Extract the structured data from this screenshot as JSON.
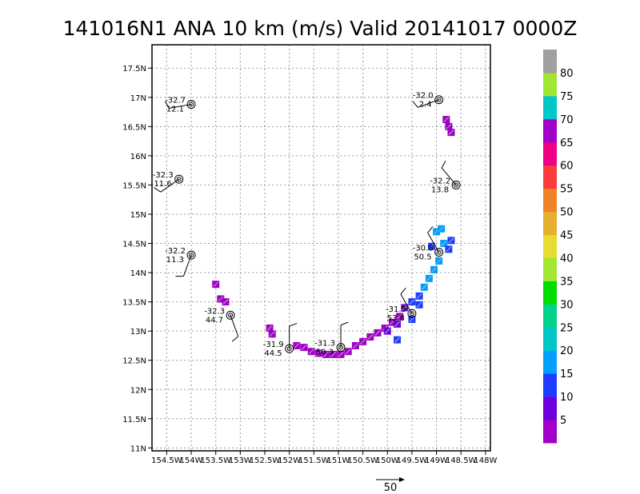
{
  "chart_data": {
    "type": "scatter",
    "title": "141016N1 ANA 10 km (m/s) Valid 20141017 0000Z",
    "xlabel": "",
    "ylabel": "",
    "xlim": [
      -154.8,
      -147.9
    ],
    "ylim": [
      10.95,
      17.9
    ],
    "x_ticks": [
      {
        "value": -154.5,
        "label": "154.5W"
      },
      {
        "value": -154.0,
        "label": "154W"
      },
      {
        "value": -153.5,
        "label": "153.5W"
      },
      {
        "value": -153.0,
        "label": "153W"
      },
      {
        "value": -152.5,
        "label": "152.5W"
      },
      {
        "value": -152.0,
        "label": "152W"
      },
      {
        "value": -151.5,
        "label": "151.5W"
      },
      {
        "value": -151.0,
        "label": "151W"
      },
      {
        "value": -150.5,
        "label": "150.5W"
      },
      {
        "value": -150.0,
        "label": "150W"
      },
      {
        "value": -149.5,
        "label": "149.5W"
      },
      {
        "value": -149.0,
        "label": "149W"
      },
      {
        "value": -148.5,
        "label": "148.5W"
      },
      {
        "value": -148.0,
        "label": "148W"
      }
    ],
    "y_ticks": [
      {
        "value": 11.0,
        "label": "11N"
      },
      {
        "value": 11.5,
        "label": "11.5N"
      },
      {
        "value": 12.0,
        "label": "12N"
      },
      {
        "value": 12.5,
        "label": "12.5N"
      },
      {
        "value": 13.0,
        "label": "13N"
      },
      {
        "value": 13.5,
        "label": "13.5N"
      },
      {
        "value": 14.0,
        "label": "14N"
      },
      {
        "value": 14.5,
        "label": "14.5N"
      },
      {
        "value": 15.0,
        "label": "15N"
      },
      {
        "value": 15.5,
        "label": "15.5N"
      },
      {
        "value": 16.0,
        "label": "16N"
      },
      {
        "value": 16.5,
        "label": "16.5N"
      },
      {
        "value": 17.0,
        "label": "17N"
      },
      {
        "value": 17.5,
        "label": "17.5N"
      }
    ],
    "grid": true,
    "legend": "right colorbar",
    "colorbar": {
      "ticks": [
        5,
        10,
        15,
        20,
        25,
        30,
        35,
        40,
        45,
        50,
        55,
        60,
        65,
        70,
        75,
        80
      ],
      "bands": [
        {
          "from": 0,
          "to": 5,
          "color": "#a000c8"
        },
        {
          "from": 5,
          "to": 10,
          "color": "#6e00dc"
        },
        {
          "from": 10,
          "to": 15,
          "color": "#1e3cff"
        },
        {
          "from": 15,
          "to": 20,
          "color": "#00a0ff"
        },
        {
          "from": 20,
          "to": 25,
          "color": "#00c8c8"
        },
        {
          "from": 25,
          "to": 30,
          "color": "#00d28c"
        },
        {
          "from": 30,
          "to": 35,
          "color": "#00dc00"
        },
        {
          "from": 35,
          "to": 40,
          "color": "#a0e632"
        },
        {
          "from": 40,
          "to": 45,
          "color": "#e6dc32"
        },
        {
          "from": 45,
          "to": 50,
          "color": "#e6af2d"
        },
        {
          "from": 50,
          "to": 55,
          "color": "#f08228"
        },
        {
          "from": 55,
          "to": 60,
          "color": "#fa3c3c"
        },
        {
          "from": 60,
          "to": 65,
          "color": "#f00082"
        },
        {
          "from": 65,
          "to": 70,
          "color": "#a000c8"
        },
        {
          "from": 70,
          "to": 75,
          "color": "#00c8c8"
        },
        {
          "from": 75,
          "to": 80,
          "color": "#a0e632"
        },
        {
          "from": 80,
          "to": 85,
          "color": "#a0a0a0"
        }
      ]
    },
    "stations": [
      {
        "lon": -154.0,
        "lat": 16.88,
        "temp": "-32.7",
        "speed": "12.1",
        "barb_dir": 260
      },
      {
        "lon": -148.95,
        "lat": 16.96,
        "temp": "-32.0",
        "speed": "2.4",
        "barb_dir": 250
      },
      {
        "lon": -154.25,
        "lat": 15.6,
        "temp": "-32.3",
        "speed": "11.6",
        "barb_dir": 235
      },
      {
        "lon": -148.6,
        "lat": 15.5,
        "temp": "-32.2",
        "speed": "13.8",
        "barb_dir": 320
      },
      {
        "lon": -154.0,
        "lat": 14.3,
        "temp": "-32.2",
        "speed": "11.3",
        "barb_dir": 200
      },
      {
        "lon": -148.95,
        "lat": 14.35,
        "temp": "-30.8",
        "speed": "50.5",
        "barb_dir": 330
      },
      {
        "lon": -153.2,
        "lat": 13.27,
        "temp": "-32.3",
        "speed": "44.7",
        "barb_dir": 160
      },
      {
        "lon": -149.5,
        "lat": 13.3,
        "temp": "-31.5",
        "speed": "53.8",
        "barb_dir": 330
      },
      {
        "lon": -152.0,
        "lat": 12.7,
        "temp": "-31.9",
        "speed": "44.5",
        "barb_dir": 0
      },
      {
        "lon": -150.95,
        "lat": 12.72,
        "temp": "-31.3",
        "speed": "50.3",
        "barb_dir": 0
      }
    ],
    "cells": [
      {
        "lon": -148.8,
        "lat": 16.62,
        "v": 3
      },
      {
        "lon": -148.75,
        "lat": 16.5,
        "v": 3
      },
      {
        "lon": -148.7,
        "lat": 16.4,
        "v": 3
      },
      {
        "lon": -153.5,
        "lat": 13.8,
        "v": 3
      },
      {
        "lon": -153.4,
        "lat": 13.55,
        "v": 3
      },
      {
        "lon": -153.3,
        "lat": 13.5,
        "v": 3
      },
      {
        "lon": -152.4,
        "lat": 13.05,
        "v": 3
      },
      {
        "lon": -152.35,
        "lat": 12.95,
        "v": 3
      },
      {
        "lon": -151.85,
        "lat": 12.75,
        "v": 3
      },
      {
        "lon": -151.7,
        "lat": 12.72,
        "v": 3
      },
      {
        "lon": -151.55,
        "lat": 12.65,
        "v": 3
      },
      {
        "lon": -151.4,
        "lat": 12.62,
        "v": 3
      },
      {
        "lon": -151.25,
        "lat": 12.6,
        "v": 3
      },
      {
        "lon": -151.1,
        "lat": 12.6,
        "v": 3
      },
      {
        "lon": -150.95,
        "lat": 12.6,
        "v": 3
      },
      {
        "lon": -150.8,
        "lat": 12.65,
        "v": 3
      },
      {
        "lon": -150.65,
        "lat": 12.75,
        "v": 3
      },
      {
        "lon": -150.5,
        "lat": 12.82,
        "v": 3
      },
      {
        "lon": -150.35,
        "lat": 12.9,
        "v": 3
      },
      {
        "lon": -150.2,
        "lat": 12.97,
        "v": 3
      },
      {
        "lon": -150.05,
        "lat": 13.05,
        "v": 3
      },
      {
        "lon": -149.9,
        "lat": 13.15,
        "v": 3
      },
      {
        "lon": -149.75,
        "lat": 13.25,
        "v": 3
      },
      {
        "lon": -150.0,
        "lat": 13.0,
        "v": 7
      },
      {
        "lon": -149.8,
        "lat": 13.12,
        "v": 7
      },
      {
        "lon": -149.65,
        "lat": 13.4,
        "v": 7
      },
      {
        "lon": -149.5,
        "lat": 13.5,
        "v": 12
      },
      {
        "lon": -149.35,
        "lat": 13.45,
        "v": 12
      },
      {
        "lon": -149.5,
        "lat": 13.2,
        "v": 12
      },
      {
        "lon": -149.35,
        "lat": 13.6,
        "v": 12
      },
      {
        "lon": -149.8,
        "lat": 12.85,
        "v": 12
      },
      {
        "lon": -149.25,
        "lat": 13.75,
        "v": 17
      },
      {
        "lon": -149.15,
        "lat": 13.9,
        "v": 17
      },
      {
        "lon": -149.05,
        "lat": 14.05,
        "v": 17
      },
      {
        "lon": -148.95,
        "lat": 14.2,
        "v": 17
      },
      {
        "lon": -148.85,
        "lat": 14.5,
        "v": 17
      },
      {
        "lon": -149.0,
        "lat": 14.7,
        "v": 17
      },
      {
        "lon": -148.9,
        "lat": 14.75,
        "v": 17
      },
      {
        "lon": -148.75,
        "lat": 14.4,
        "v": 12
      },
      {
        "lon": -148.7,
        "lat": 14.55,
        "v": 12
      },
      {
        "lon": -149.1,
        "lat": 14.45,
        "v": 12
      }
    ]
  }
}
